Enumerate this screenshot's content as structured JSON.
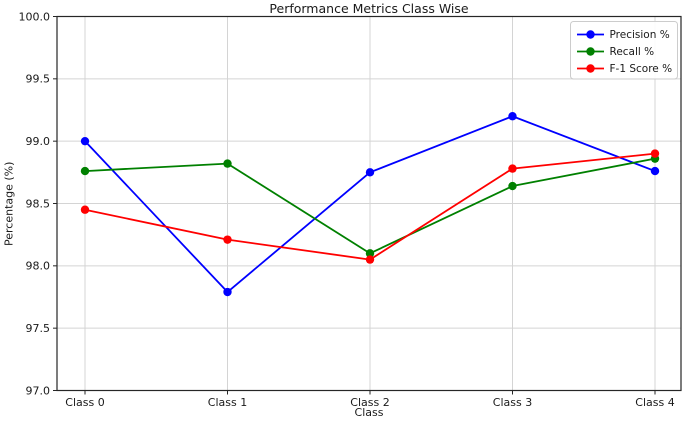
{
  "chart_data": {
    "type": "line",
    "title": "Performance Metrics Class Wise",
    "xlabel": "Class",
    "ylabel": "Percentage (%)",
    "categories": [
      "Class 0",
      "Class 1",
      "Class 2",
      "Class 3",
      "Class 4"
    ],
    "series": [
      {
        "name": "Precision %",
        "color": "#0000ff",
        "values": [
          99.0,
          97.79,
          98.75,
          99.2,
          98.76
        ]
      },
      {
        "name": "Recall %",
        "color": "#008000",
        "values": [
          98.76,
          98.82,
          98.1,
          98.64,
          98.86
        ]
      },
      {
        "name": "F-1 Score %",
        "color": "#ff0000",
        "values": [
          98.45,
          98.21,
          98.05,
          98.78,
          98.9
        ]
      }
    ],
    "ylim": [
      97.0,
      100.0
    ],
    "yticks": [
      "100.0",
      "99.5",
      "99.0",
      "98.5",
      "98.0",
      "97.5",
      "97.0"
    ],
    "ytick_values": [
      100.0,
      99.5,
      99.0,
      98.5,
      98.0,
      97.5,
      97.0
    ],
    "grid": true,
    "legend_position": "upper right",
    "marker": "circle",
    "colors": {
      "grid": "#d4d4d4",
      "spine": "#262626",
      "tick_text": "#1a1a1a",
      "legend_border": "#cccccc",
      "legend_bg": "#ffffff"
    }
  }
}
